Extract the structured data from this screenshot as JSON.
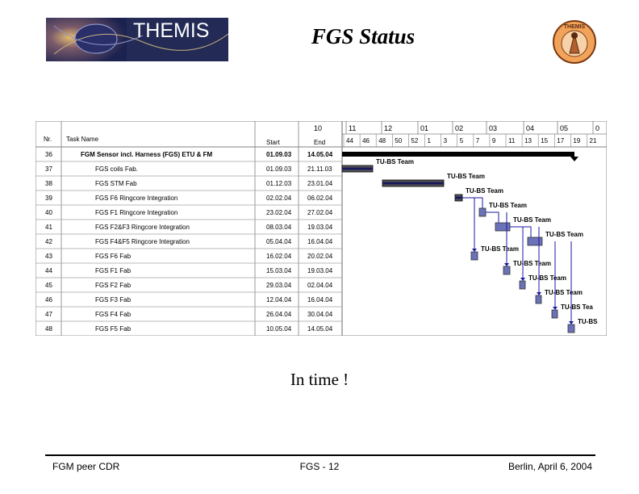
{
  "header": {
    "logo_left_text": "THEMIS",
    "title": "FGS Status",
    "logo_right_text": "THEMIS"
  },
  "gantt": {
    "columns": {
      "nr": "Nr.",
      "task": "Task Name",
      "start": "Start",
      "end": "End"
    },
    "timescale_top": [
      "10",
      "11",
      "12",
      "01",
      "02",
      "03",
      "04",
      "05",
      "0"
    ],
    "timescale_bottom": [
      "44",
      "46",
      "48",
      "50",
      "52",
      "1",
      "3",
      "5",
      "7",
      "9",
      "11",
      "13",
      "15",
      "17",
      "19",
      "21"
    ],
    "rows": [
      {
        "nr": "36",
        "task": "FGM Sensor incl. Harness (FGS) ETU & FM",
        "start": "01.09.03",
        "end": "14.05.04",
        "summary": true
      },
      {
        "nr": "37",
        "task": "FGS coils Fab.",
        "start": "01.09.03",
        "end": "21.11.03"
      },
      {
        "nr": "38",
        "task": "FGS STM Fab",
        "start": "01.12.03",
        "end": "23.01.04"
      },
      {
        "nr": "39",
        "task": "FGS F6 Ringcore Integration",
        "start": "02.02.04",
        "end": "06.02.04"
      },
      {
        "nr": "40",
        "task": "FGS F1 Ringcore Integration",
        "start": "23.02.04",
        "end": "27.02.04"
      },
      {
        "nr": "41",
        "task": "FGS F2&F3 Ringcore Integration",
        "start": "08.03.04",
        "end": "19.03.04"
      },
      {
        "nr": "42",
        "task": "FGS F4&F5 Ringcore Integration",
        "start": "05.04.04",
        "end": "16.04.04"
      },
      {
        "nr": "43",
        "task": "FGS F6 Fab",
        "start": "16.02.04",
        "end": "20.02.04"
      },
      {
        "nr": "44",
        "task": "FGS F1 Fab",
        "start": "15.03.04",
        "end": "19.03.04"
      },
      {
        "nr": "45",
        "task": "FGS F2  Fab",
        "start": "29.03.04",
        "end": "02.04.04"
      },
      {
        "nr": "46",
        "task": "FGS F3  Fab",
        "start": "12.04.04",
        "end": "16.04.04"
      },
      {
        "nr": "47",
        "task": "FGS F4  Fab",
        "start": "26.04.04",
        "end": "30.04.04"
      },
      {
        "nr": "48",
        "task": "FGS F5  Fab",
        "start": "10.05.04",
        "end": "14.05.04"
      }
    ],
    "bar_labels": [
      "TU-BS Team",
      "TU-BS Team",
      "TU-BS Team",
      "TU-BS Team",
      "TU-BS Team",
      "TU-BS Team",
      "TU-BS Team",
      "TU-BS Team",
      "TU-BS Team",
      "TU-BS Team",
      "TU-BS Tea",
      "TU-BS"
    ]
  },
  "caption": "In time !",
  "footer": {
    "left": "FGM peer CDR",
    "center": "FGS - 12",
    "right": "Berlin, April 6, 2004"
  },
  "colors": {
    "bar": "#6b72b8",
    "bar_dark": "#1a1a5a",
    "arrow": "#1a1aa0",
    "rule": "#000000"
  }
}
